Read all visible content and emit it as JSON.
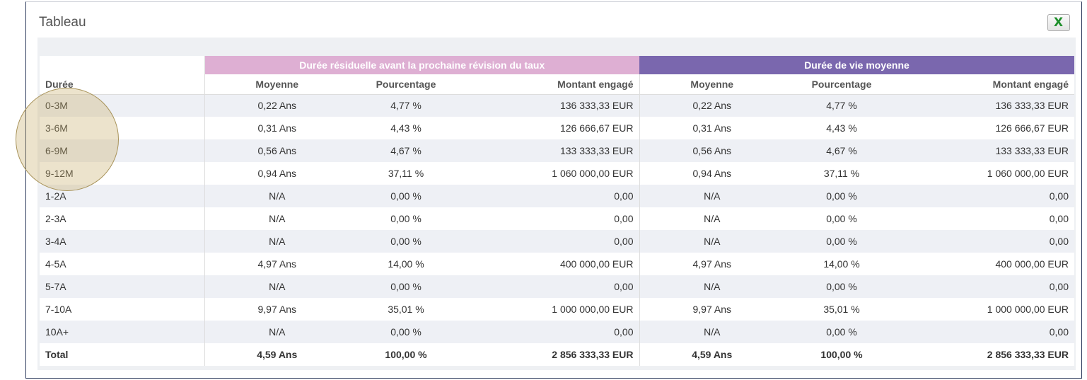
{
  "header": {
    "title": "Tableau"
  },
  "table": {
    "groups": [
      "Durée résiduelle avant la prochaine révision du taux",
      "Durée de vie moyenne"
    ],
    "columns": [
      "Durée",
      "Moyenne",
      "Pourcentage",
      "Montant engagé",
      "Moyenne",
      "Pourcentage",
      "Montant engagé"
    ],
    "rows": [
      [
        "0-3M",
        "0,22 Ans",
        "4,77 %",
        "136 333,33 EUR",
        "0,22 Ans",
        "4,77 %",
        "136 333,33 EUR"
      ],
      [
        "3-6M",
        "0,31 Ans",
        "4,43 %",
        "126 666,67 EUR",
        "0,31 Ans",
        "4,43 %",
        "126 666,67 EUR"
      ],
      [
        "6-9M",
        "0,56 Ans",
        "4,67 %",
        "133 333,33 EUR",
        "0,56 Ans",
        "4,67 %",
        "133 333,33 EUR"
      ],
      [
        "9-12M",
        "0,94 Ans",
        "37,11 %",
        "1 060 000,00 EUR",
        "0,94 Ans",
        "37,11 %",
        "1 060 000,00 EUR"
      ],
      [
        "1-2A",
        "N/A",
        "0,00 %",
        "0,00",
        "N/A",
        "0,00 %",
        "0,00"
      ],
      [
        "2-3A",
        "N/A",
        "0,00 %",
        "0,00",
        "N/A",
        "0,00 %",
        "0,00"
      ],
      [
        "3-4A",
        "N/A",
        "0,00 %",
        "0,00",
        "N/A",
        "0,00 %",
        "0,00"
      ],
      [
        "4-5A",
        "4,97 Ans",
        "14,00 %",
        "400 000,00 EUR",
        "4,97 Ans",
        "14,00 %",
        "400 000,00 EUR"
      ],
      [
        "5-7A",
        "N/A",
        "0,00 %",
        "0,00",
        "N/A",
        "0,00 %",
        "0,00"
      ],
      [
        "7-10A",
        "9,97 Ans",
        "35,01 %",
        "1 000 000,00 EUR",
        "9,97 Ans",
        "35,01 %",
        "1 000 000,00 EUR"
      ],
      [
        "10A+",
        "N/A",
        "0,00 %",
        "0,00",
        "N/A",
        "0,00 %",
        "0,00"
      ]
    ],
    "total": [
      "Total",
      "4,59 Ans",
      "100,00 %",
      "2 856 333,33 EUR",
      "4,59 Ans",
      "100,00 %",
      "2 856 333,33 EUR"
    ]
  }
}
